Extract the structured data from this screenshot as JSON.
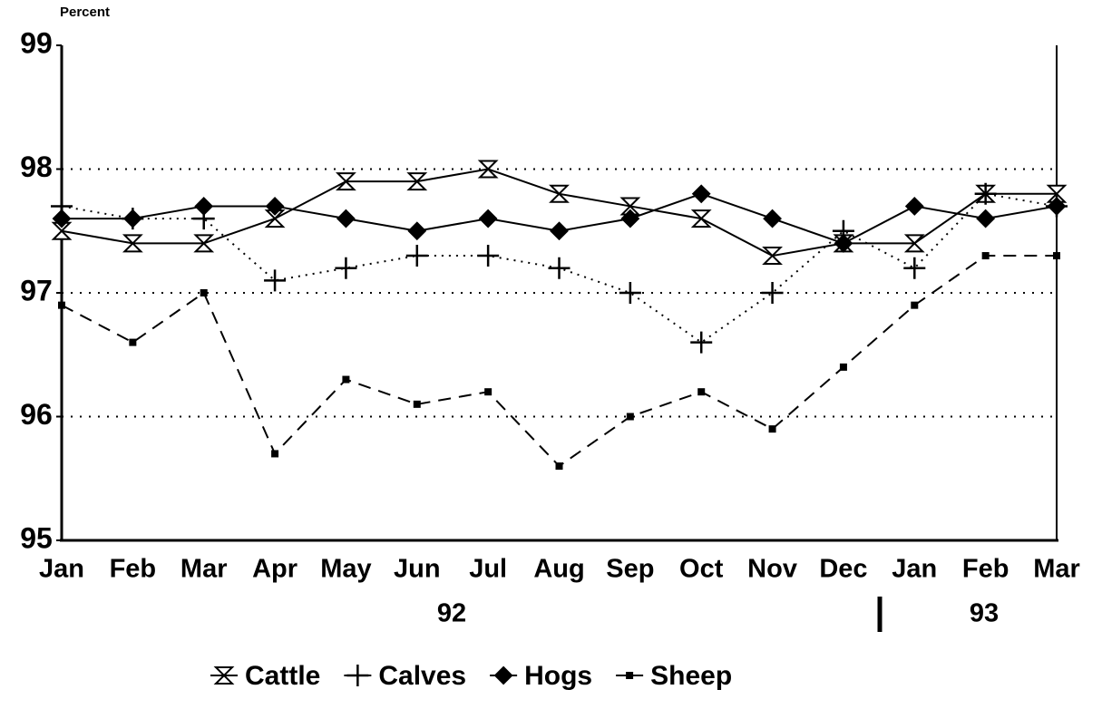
{
  "chart_data": {
    "type": "line",
    "y_label": "Percent",
    "categories": [
      "Jan",
      "Feb",
      "Mar",
      "Apr",
      "May",
      "Jun",
      "Jul",
      "Aug",
      "Sep",
      "Oct",
      "Nov",
      "Dec",
      "Jan",
      "Feb",
      "Mar"
    ],
    "x_groups": [
      "92",
      "93"
    ],
    "series": [
      {
        "name": "Cattle",
        "color": "#000000",
        "line_style": "solid",
        "marker": "hourglass",
        "values": [
          97.5,
          97.4,
          97.4,
          97.6,
          97.9,
          97.9,
          98.0,
          97.8,
          97.7,
          97.6,
          97.3,
          97.4,
          97.4,
          97.8,
          97.8
        ]
      },
      {
        "name": "Calves",
        "color": "#000000",
        "line_style": "dotted",
        "marker": "plus",
        "values": [
          97.7,
          97.6,
          97.6,
          97.1,
          97.2,
          97.3,
          97.3,
          97.2,
          97.0,
          96.6,
          97.0,
          97.5,
          97.2,
          97.8,
          97.7
        ]
      },
      {
        "name": "Hogs",
        "color": "#000000",
        "line_style": "solid",
        "marker": "diamond",
        "values": [
          97.6,
          97.6,
          97.7,
          97.7,
          97.6,
          97.5,
          97.6,
          97.5,
          97.6,
          97.8,
          97.6,
          97.4,
          97.7,
          97.6,
          97.7
        ]
      },
      {
        "name": "Sheep",
        "color": "#000000",
        "line_style": "dashed",
        "marker": "square",
        "values": [
          96.9,
          96.6,
          97.0,
          95.7,
          96.3,
          96.1,
          96.2,
          95.6,
          96.0,
          96.2,
          95.9,
          96.4,
          96.9,
          97.3,
          97.3
        ]
      }
    ],
    "ylim": [
      95,
      99
    ],
    "yticks": [
      95,
      96,
      97,
      98,
      99
    ],
    "grid": true,
    "legend": "bottom"
  }
}
